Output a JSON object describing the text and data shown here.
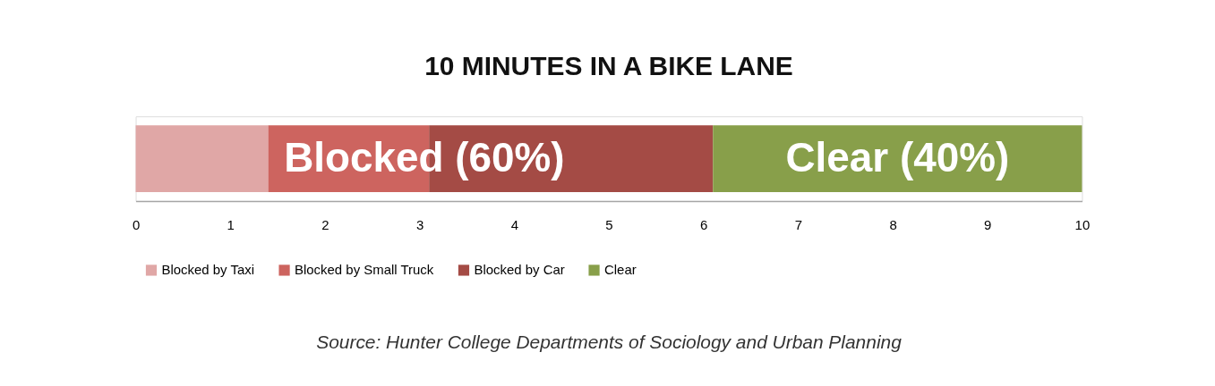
{
  "chart_data": {
    "type": "bar",
    "title": "10 MINUTES IN A BIKE LANE",
    "orientation": "horizontal",
    "stacked": true,
    "categories": [
      null
    ],
    "series": [
      {
        "name": "Blocked by Taxi",
        "color": "#e0a7a6",
        "values": [
          1.4
        ]
      },
      {
        "name": "Blocked by Small Truck",
        "color": "#cd645f",
        "values": [
          1.7
        ]
      },
      {
        "name": "Blocked by Car",
        "color": "#a44b45",
        "values": [
          3.0
        ]
      },
      {
        "name": "Clear",
        "color": "#889f4a",
        "values": [
          3.9
        ]
      }
    ],
    "xlim": [
      0,
      10
    ],
    "xticks": [
      0,
      1,
      2,
      3,
      4,
      5,
      6,
      7,
      8,
      9,
      10
    ],
    "grid": false,
    "legend": "bottom",
    "annotations": [
      "Blocked (60%)",
      "Clear (40%)",
      "Source: Hunter College Departments of Sociology and Urban Planning"
    ]
  }
}
